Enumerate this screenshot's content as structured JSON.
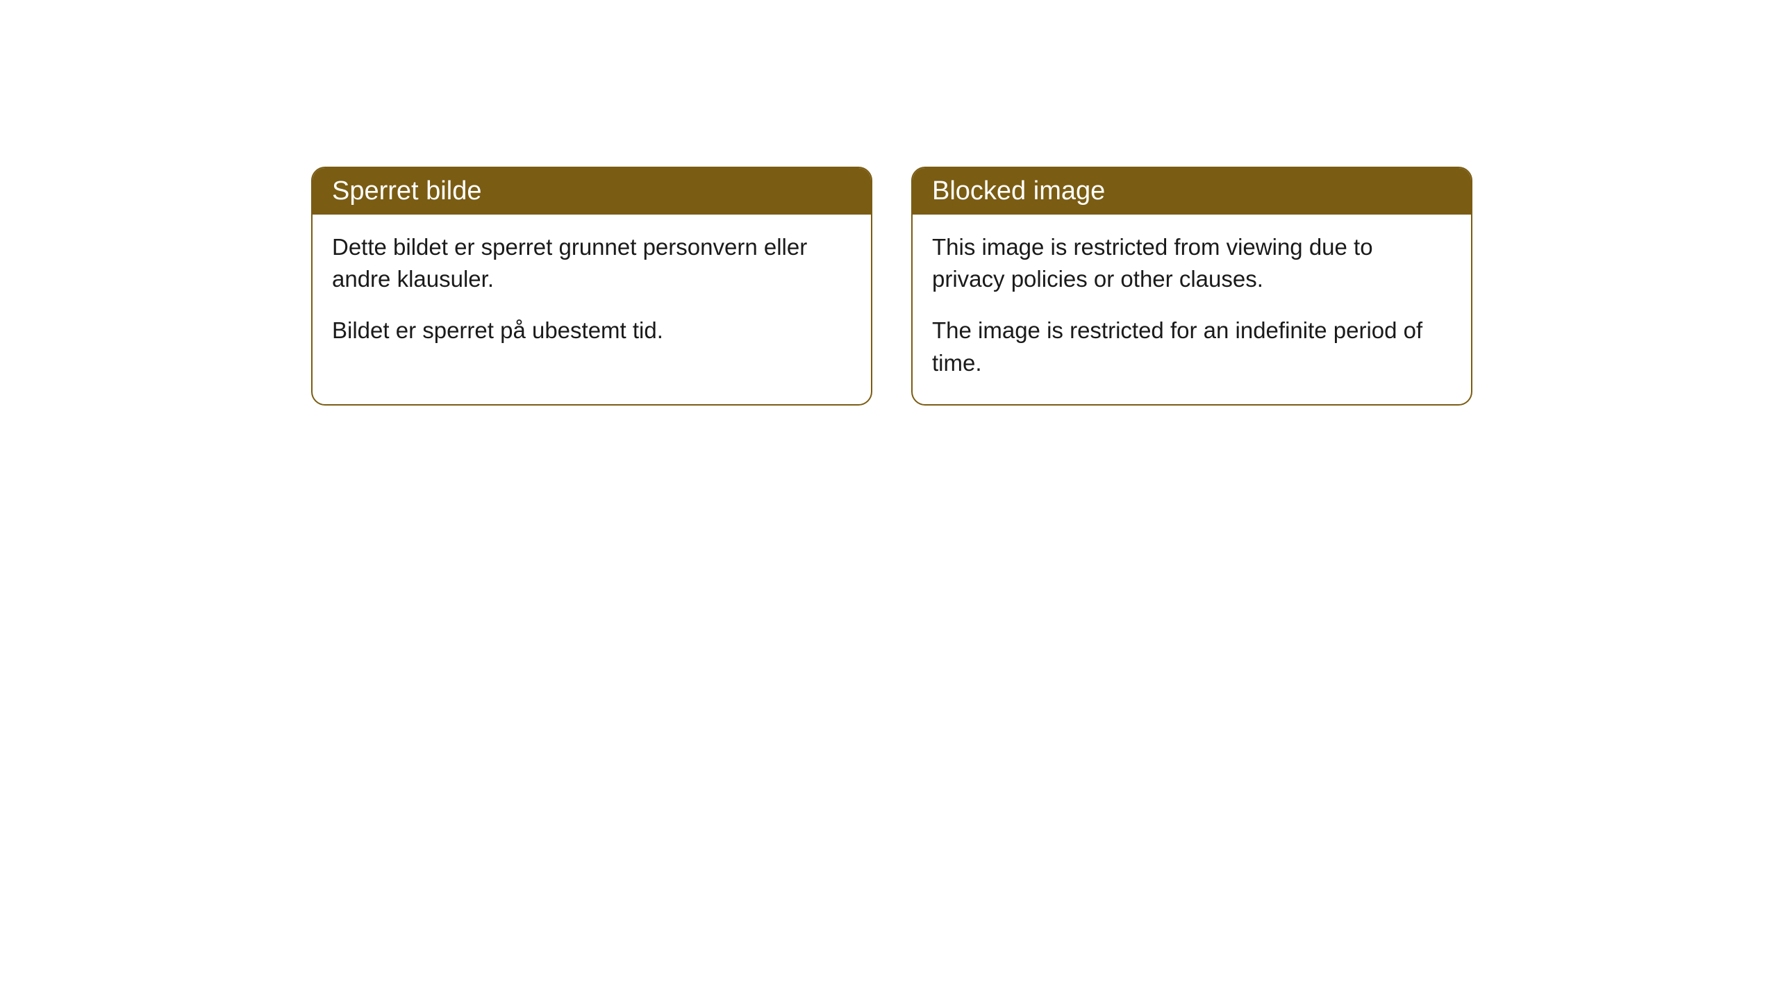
{
  "cards": [
    {
      "title": "Sperret bilde",
      "paragraph1": "Dette bildet er sperret grunnet personvern eller andre klausuler.",
      "paragraph2": "Bildet er sperret på ubestemt tid."
    },
    {
      "title": "Blocked image",
      "paragraph1": "This image is restricted from viewing due to privacy policies or other clauses.",
      "paragraph2": "The image is restricted for an indefinite period of time."
    }
  ],
  "style": {
    "header_background": "#7a5c13",
    "header_text_color": "#ffffff",
    "border_color": "#7a5c13",
    "body_background": "#ffffff",
    "body_text_color": "#1a1a1a",
    "border_radius": 20,
    "title_fontsize": 38,
    "body_fontsize": 33
  }
}
